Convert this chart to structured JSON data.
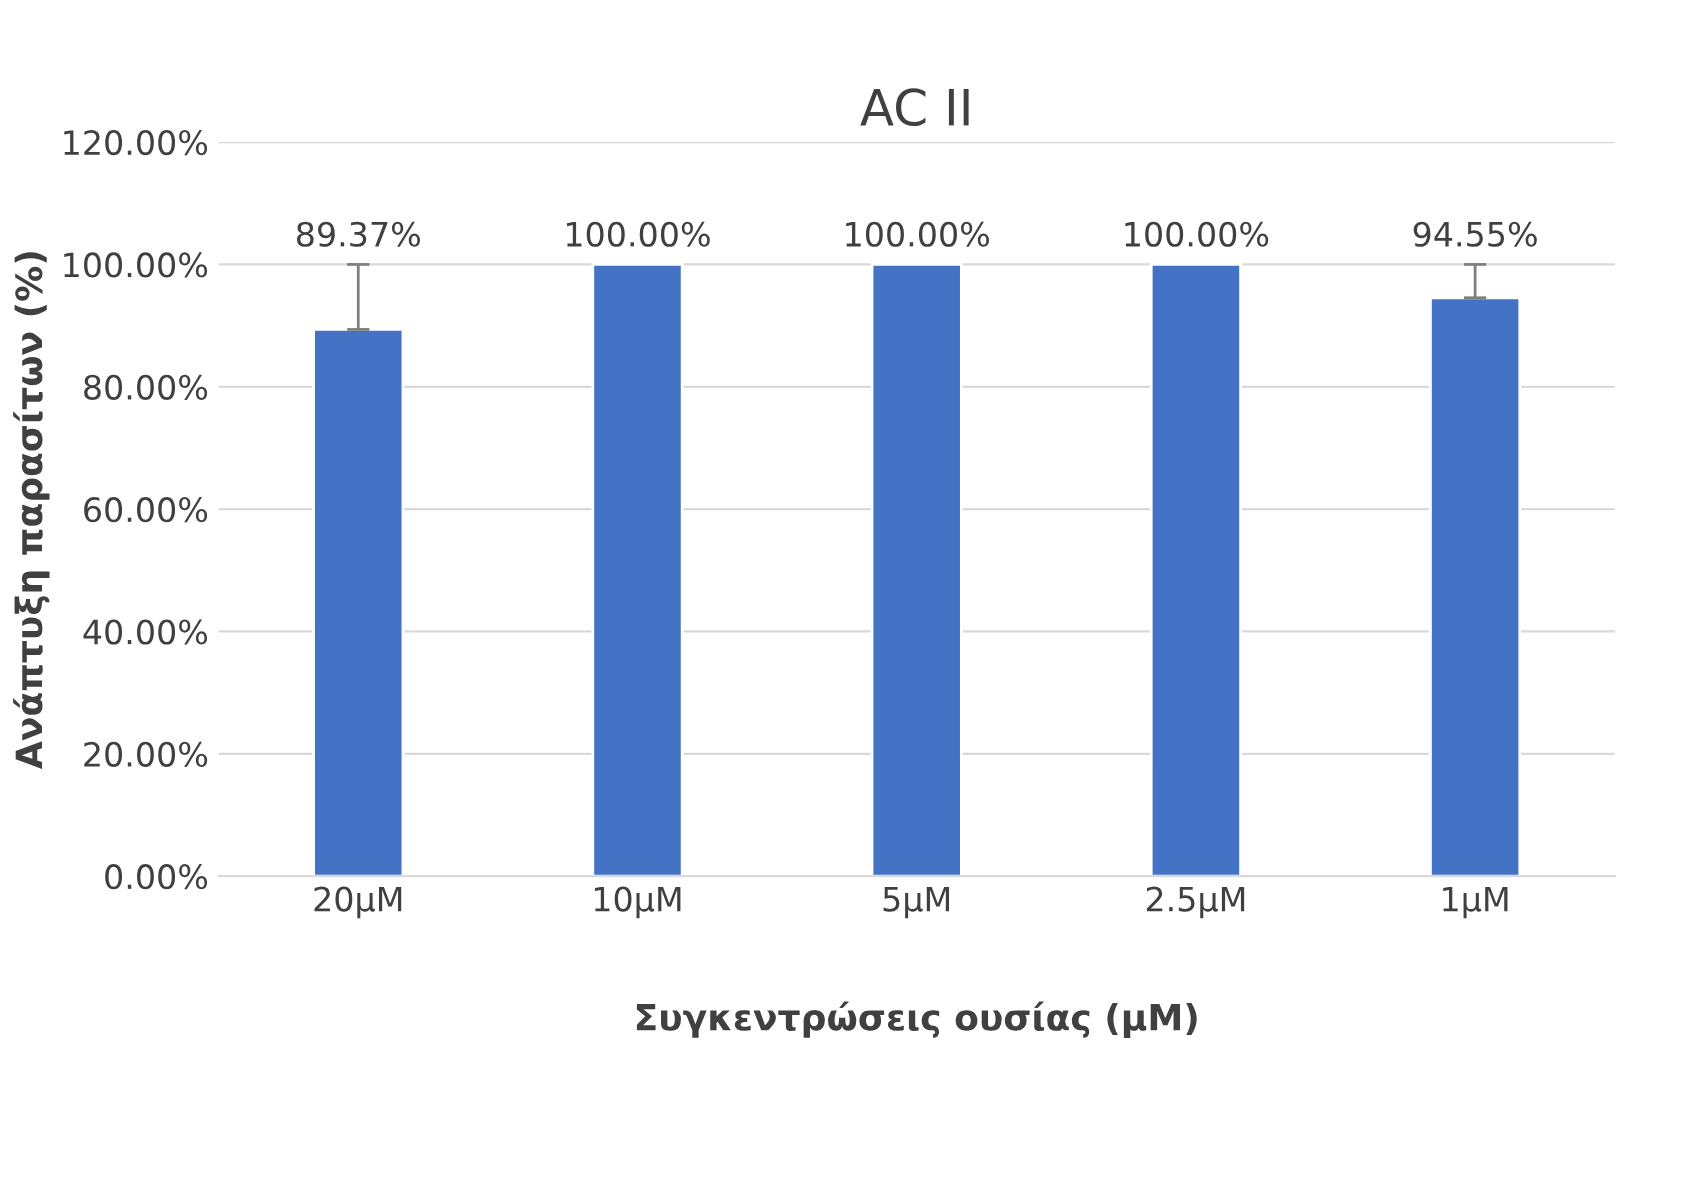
{
  "chart_data": {
    "type": "bar",
    "title": "AC II",
    "xlabel": "Συγκεντρώσεις ουσίας (μM)",
    "ylabel": "Ανάπτυξη παρασίτων (%)",
    "categories": [
      "20μM",
      "10μM",
      "5μM",
      "2.5μM",
      "1μM"
    ],
    "values": [
      89.37,
      100,
      100,
      100,
      94.55
    ],
    "value_labels": [
      "89.37%",
      "100.00%",
      "100.00%",
      "100.00%",
      "94.55%"
    ],
    "errors": [
      [
        89.37,
        100
      ],
      null,
      null,
      null,
      [
        94.55,
        100
      ]
    ],
    "color": "#4472c4",
    "ylim": [
      0,
      120
    ],
    "yticks": [
      {
        "value": 0,
        "label": "0.00%"
      },
      {
        "value": 20,
        "label": "20.00%"
      },
      {
        "value": 40,
        "label": "40.00%"
      },
      {
        "value": 60,
        "label": "60.00%"
      },
      {
        "value": 80,
        "label": "80.00%"
      },
      {
        "value": 100,
        "label": "100.00%"
      },
      {
        "value": 120,
        "label": "120.00%"
      }
    ],
    "grid": "y"
  }
}
